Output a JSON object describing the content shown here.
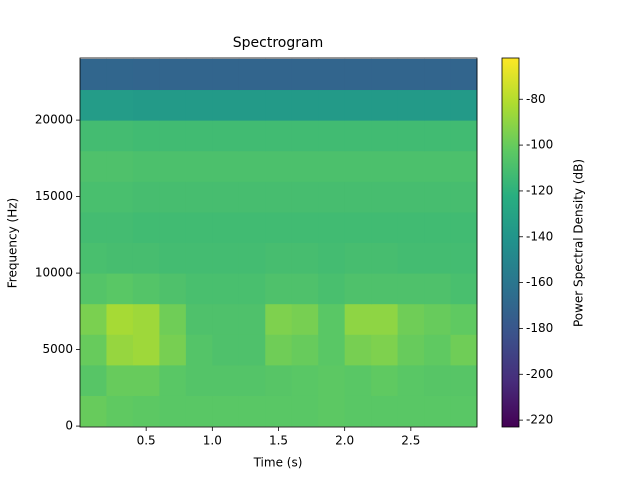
{
  "chart_data": {
    "type": "heatmap",
    "title": "Spectrogram",
    "x_label": "Time (s)",
    "y_label": "Frequency (Hz)",
    "colorbar_label": "Power Spectral Density (dB)",
    "colormap": "viridis",
    "xlim": [
      0,
      3
    ],
    "xticks": [
      0.5,
      {
        "value": 1.0,
        "label": "1.0"
      },
      1.5,
      {
        "value": 2.0,
        "label": "2.0"
      },
      2.5
    ],
    "ylim": [
      -60,
      24060
    ],
    "yticks": [
      0,
      5000,
      10000,
      15000,
      20000
    ],
    "clim": [
      -223,
      -62
    ],
    "cticks": [
      -80,
      -100,
      -120,
      -140,
      -160,
      -180,
      -200,
      -220
    ],
    "x_edges": [
      0,
      0.2,
      0.4,
      0.6,
      0.8,
      1.0,
      1.2,
      1.4,
      1.6,
      1.8,
      2.0,
      2.2,
      2.4,
      2.6,
      2.8,
      3.0
    ],
    "y_edges": [
      0,
      2000,
      4000,
      6000,
      8000,
      10000,
      12000,
      14000,
      16000,
      18000,
      20000,
      22000,
      24000
    ],
    "z": [
      [
        -100,
        -102,
        -103,
        -104,
        -104,
        -104,
        -104,
        -104,
        -104,
        -103,
        -104,
        -104,
        -104,
        -104,
        -104
      ],
      [
        -105,
        -100,
        -100,
        -104,
        -106,
        -106,
        -106,
        -105,
        -104,
        -103,
        -104,
        -102,
        -104,
        -105,
        -105
      ],
      [
        -100,
        -88,
        -86,
        -96,
        -106,
        -108,
        -108,
        -98,
        -100,
        -104,
        -96,
        -94,
        -100,
        -102,
        -98
      ],
      [
        -95,
        -84,
        -86,
        -98,
        -108,
        -108,
        -108,
        -94,
        -96,
        -104,
        -90,
        -90,
        -98,
        -100,
        -102
      ],
      [
        -106,
        -104,
        -106,
        -108,
        -110,
        -110,
        -110,
        -108,
        -108,
        -110,
        -108,
        -108,
        -108,
        -108,
        -110
      ],
      [
        -110,
        -111,
        -111,
        -112,
        -112,
        -112,
        -112,
        -111,
        -111,
        -112,
        -111,
        -111,
        -112,
        -112,
        -112
      ],
      [
        -112,
        -112,
        -113,
        -113,
        -113,
        -113,
        -113,
        -113,
        -113,
        -113,
        -113,
        -113,
        -113,
        -113,
        -113
      ],
      [
        -110,
        -110,
        -111,
        -111,
        -111,
        -111,
        -111,
        -111,
        -111,
        -111,
        -111,
        -111,
        -111,
        -111,
        -111
      ],
      [
        -108,
        -108,
        -109,
        -109,
        -109,
        -109,
        -109,
        -109,
        -109,
        -109,
        -109,
        -109,
        -109,
        -109,
        -109
      ],
      [
        -112,
        -112,
        -113,
        -113,
        -113,
        -113,
        -113,
        -113,
        -113,
        -113,
        -113,
        -113,
        -113,
        -113,
        -113
      ],
      [
        -135,
        -135,
        -136,
        -136,
        -136,
        -136,
        -136,
        -136,
        -136,
        -136,
        -136,
        -136,
        -136,
        -136,
        -136
      ],
      [
        -170,
        -170,
        -171,
        -171,
        -171,
        -171,
        -171,
        -171,
        -171,
        -171,
        -171,
        -171,
        -171,
        -171,
        -171
      ]
    ]
  }
}
